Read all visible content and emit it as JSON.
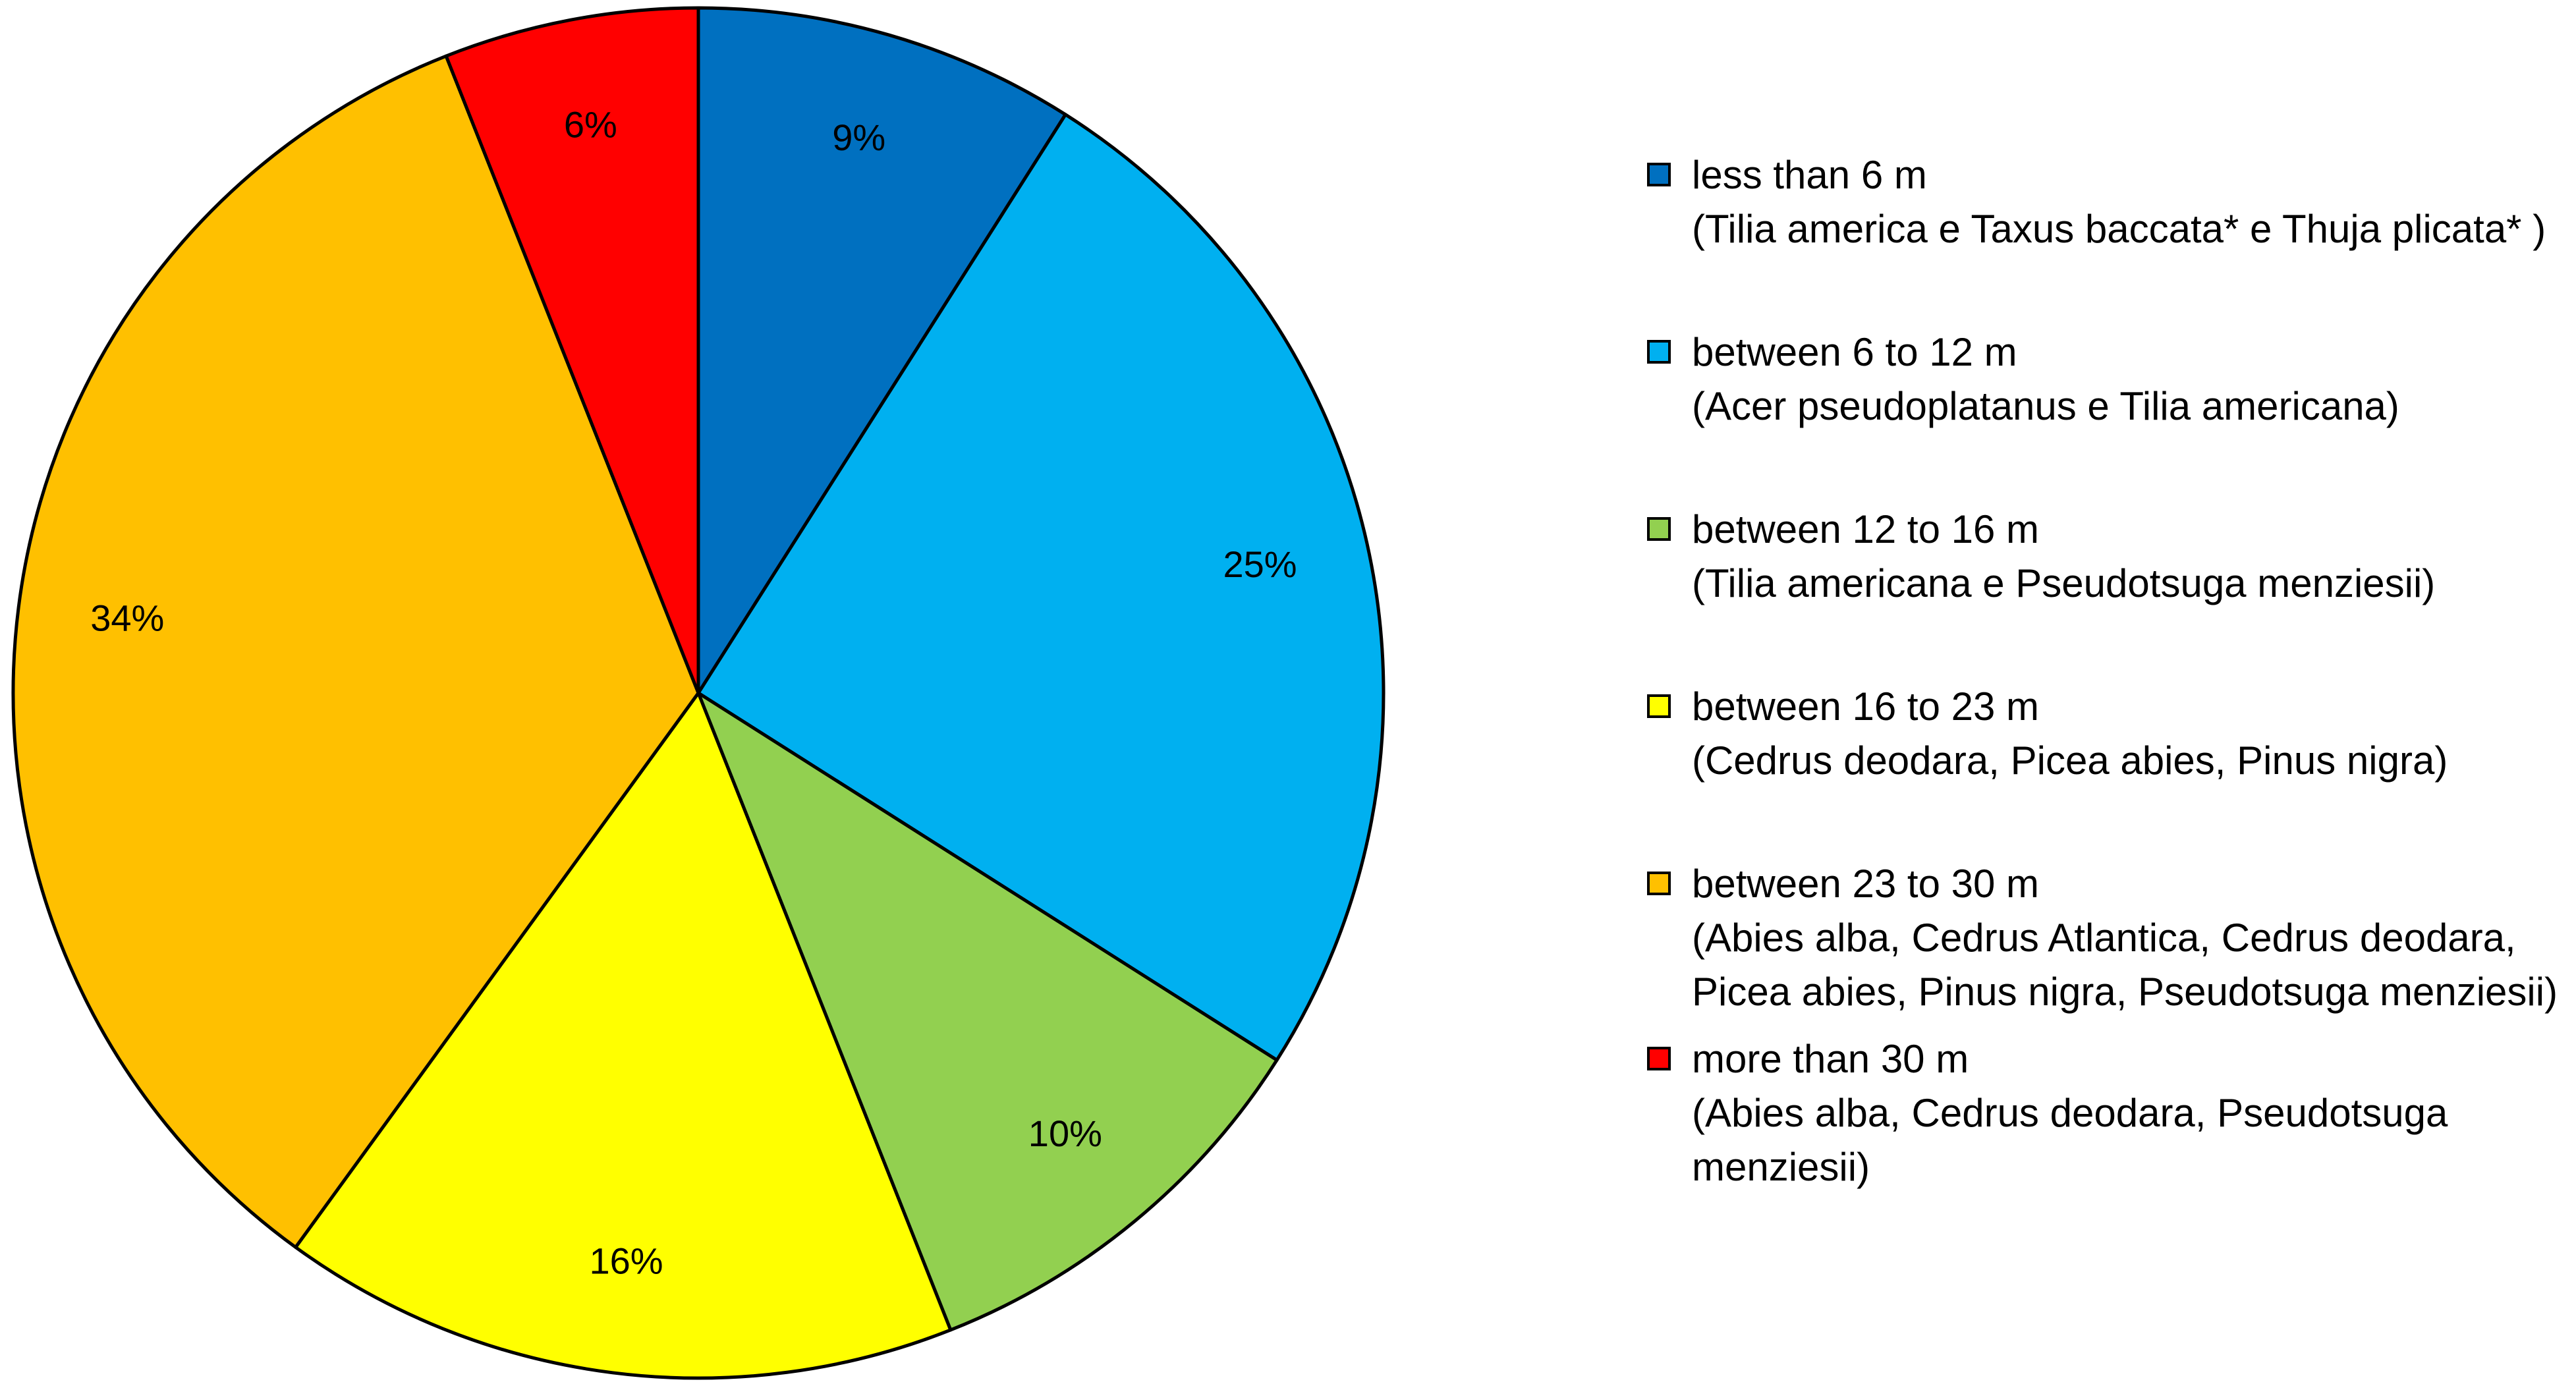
{
  "chart_data": {
    "type": "pie",
    "title": "",
    "start_angle_deg": 0,
    "direction": "clockwise",
    "slices": [
      {
        "label": "less than 6 m",
        "species": "(Tilia america e Taxus baccata* e Thuja plicata* )",
        "value": 9,
        "display": "9%",
        "color": "#0070c0"
      },
      {
        "label": "between 6 to 12 m",
        "species": "(Acer pseudoplatanus e Tilia americana)",
        "value": 25,
        "display": "25%",
        "color": "#00b0f0"
      },
      {
        "label": "between 12 to 16 m",
        "species": "(Tilia americana e Pseudotsuga menziesii)",
        "value": 10,
        "display": "10%",
        "color": "#92d050"
      },
      {
        "label": "between 16 to 23 m",
        "species": "(Cedrus deodara, Picea abies, Pinus nigra)",
        "value": 16,
        "display": "16%",
        "color": "#ffff00"
      },
      {
        "label": "between 23 to 30 m",
        "species": "(Abies alba, Cedrus Atlantica, Cedrus deodara,\nPicea abies, Pinus nigra, Pseudotsuga menziesii)",
        "value": 34,
        "display": "34%",
        "color": "#ffc000"
      },
      {
        "label": "more than 30 m",
        "species": "(Abies alba, Cedrus deodara, Pseudotsuga\nmenziesii)",
        "value": 6,
        "display": "6%",
        "color": "#ff0000"
      }
    ],
    "legend_position": "right"
  }
}
